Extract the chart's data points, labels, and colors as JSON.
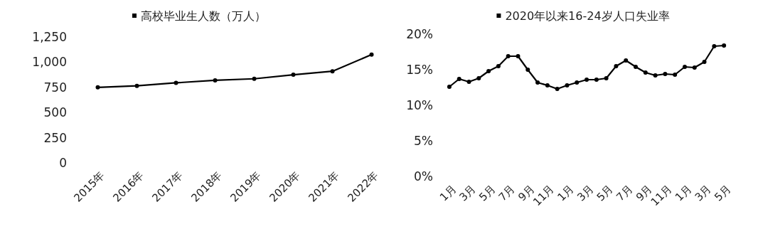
{
  "chart_data": [
    {
      "type": "line",
      "categories": [
        "2015年",
        "2016年",
        "2017年",
        "2018年",
        "2019年",
        "2020年",
        "2021年",
        "2022年"
      ],
      "series": [
        {
          "name": "高校毕业生人数（万人）",
          "color": "#000000",
          "values": [
            750,
            765,
            795,
            820,
            835,
            875,
            910,
            1075
          ]
        }
      ],
      "ylim": [
        0,
        1250
      ],
      "yticks": [
        0,
        250,
        500,
        750,
        {
          "value": 1000,
          "label": "1,000"
        },
        {
          "value": 1250,
          "label": "1,250"
        }
      ],
      "legend": "top",
      "marker": "circle"
    },
    {
      "type": "line",
      "categories": [
        "1月",
        null,
        "3月",
        null,
        "5月",
        null,
        "7月",
        null,
        "9月",
        null,
        "11月",
        null,
        "1月",
        null,
        "3月",
        null,
        "5月",
        null,
        "7月",
        null,
        "9月",
        null,
        "11月",
        null,
        "1月",
        null,
        "3月",
        null,
        "5月"
      ],
      "series": [
        {
          "name": "2020年以来16-24岁人口失业率",
          "color": "#000000",
          "values": [
            12.6,
            13.7,
            13.3,
            13.8,
            14.8,
            15.5,
            16.9,
            16.9,
            15.0,
            13.2,
            12.8,
            12.3,
            12.8,
            13.2,
            13.6,
            13.6,
            13.8,
            15.5,
            16.3,
            15.4,
            14.6,
            14.2,
            14.4,
            14.3,
            15.4,
            15.3,
            16.1,
            18.3,
            18.4
          ]
        }
      ],
      "ylim": [
        0,
        20
      ],
      "yticks": [
        {
          "value": 0,
          "label": "0%"
        },
        {
          "value": 5,
          "label": "5%"
        },
        {
          "value": 10,
          "label": "10%"
        },
        {
          "value": 15,
          "label": "15%"
        },
        {
          "value": 20,
          "label": "20%"
        }
      ],
      "legend": "top",
      "marker": "circle"
    }
  ]
}
